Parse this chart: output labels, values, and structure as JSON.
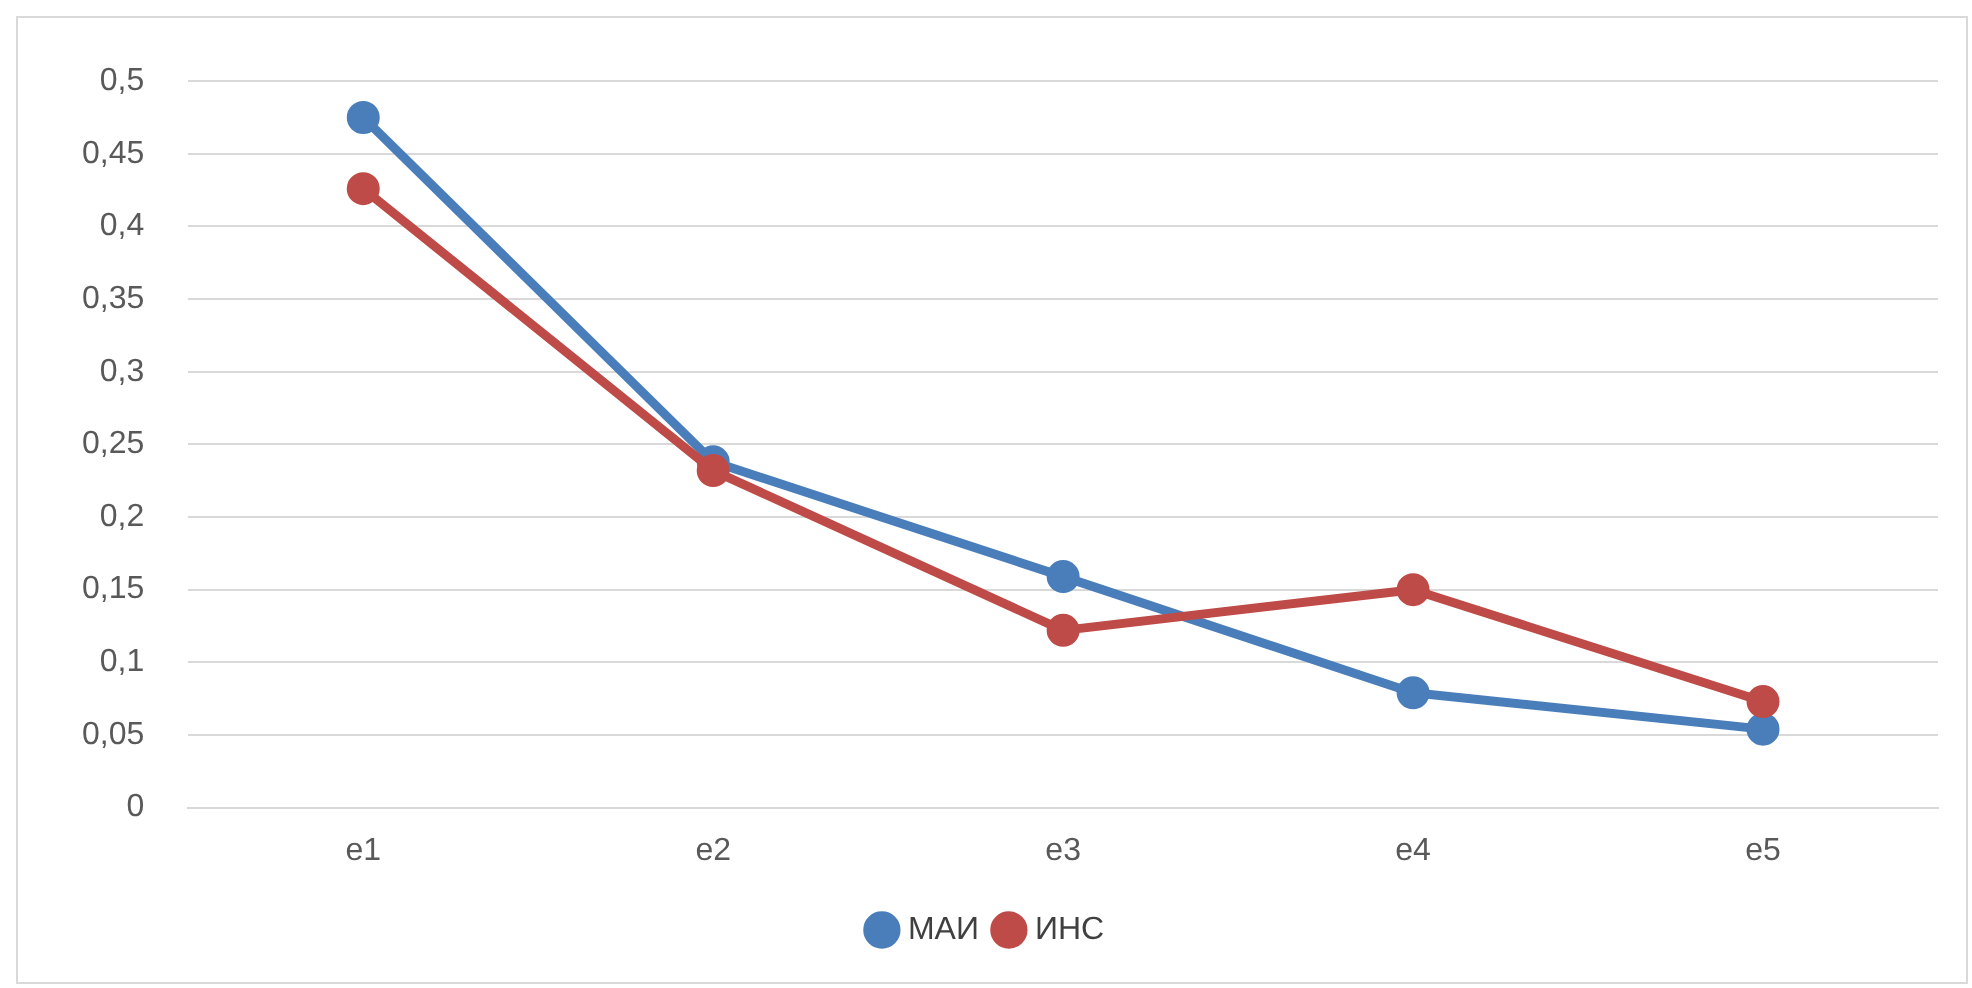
{
  "chart_data": {
    "type": "line",
    "categories": [
      "e1",
      "e2",
      "e3",
      "e4",
      "e5"
    ],
    "series": [
      {
        "name": "МАИ",
        "color": "#4a7ebb",
        "values": [
          0.475,
          0.238,
          0.159,
          0.079,
          0.054
        ]
      },
      {
        "name": "ИНС",
        "color": "#be4b48",
        "values": [
          0.426,
          0.232,
          0.122,
          0.15,
          0.073
        ]
      }
    ],
    "ylim": [
      0,
      0.5
    ],
    "yticks": [
      {
        "value": 0,
        "label": "0"
      },
      {
        "value": 0.05,
        "label": "0,05"
      },
      {
        "value": 0.1,
        "label": "0,1"
      },
      {
        "value": 0.15,
        "label": "0,15"
      },
      {
        "value": 0.2,
        "label": "0,2"
      },
      {
        "value": 0.25,
        "label": "0,25"
      },
      {
        "value": 0.3,
        "label": "0,3"
      },
      {
        "value": 0.35,
        "label": "0,35"
      },
      {
        "value": 0.4,
        "label": "0,4"
      },
      {
        "value": 0.45,
        "label": "0,45"
      },
      {
        "value": 0.5,
        "label": "0,5"
      }
    ],
    "grid": "y",
    "legend": "bottom",
    "marker": "circle",
    "line_style": "solid"
  }
}
